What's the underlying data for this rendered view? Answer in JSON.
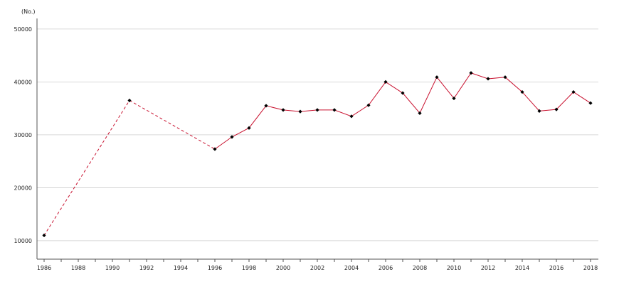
{
  "chart_data": {
    "type": "line",
    "title": "",
    "xlabel": "",
    "ylabel": "",
    "y_unit": "(No.)",
    "xlim": [
      1986,
      2018
    ],
    "ylim": [
      6500,
      52000
    ],
    "x_ticks": [
      "1986",
      "1988",
      "1990",
      "1992",
      "1994",
      "1996",
      "1998",
      "2000",
      "2002",
      "2004",
      "2006",
      "2008",
      "2010",
      "2012",
      "2014",
      "2016",
      "2018"
    ],
    "y_ticks": [
      "10000",
      "20000",
      "30000",
      "40000",
      "50000"
    ],
    "grid": true,
    "line_color": "#c8102e",
    "marker_color": "#000000",
    "dashed_segments": [
      {
        "x": [
          1986,
          1991
        ],
        "y": [
          11000,
          36500
        ]
      },
      {
        "x": [
          1991,
          1996
        ],
        "y": [
          36500,
          27300
        ]
      }
    ],
    "series": [
      {
        "x": [
          1996,
          1997,
          1998,
          1999,
          2000,
          2001,
          2002,
          2003,
          2004,
          2005,
          2006,
          2007,
          2008,
          2009,
          2010,
          2011,
          2012,
          2013,
          2014,
          2015,
          2016,
          2017,
          2018
        ],
        "values": [
          27300,
          29600,
          31300,
          35500,
          34700,
          34400,
          34700,
          34700,
          33500,
          35600,
          40000,
          37900,
          34100,
          40900,
          36900,
          41700,
          40600,
          40900,
          38100,
          34500,
          34800,
          38100,
          36000
        ]
      }
    ],
    "isolated_points": [
      {
        "x": 1986,
        "y": 11000
      },
      {
        "x": 1991,
        "y": 36500
      }
    ]
  }
}
